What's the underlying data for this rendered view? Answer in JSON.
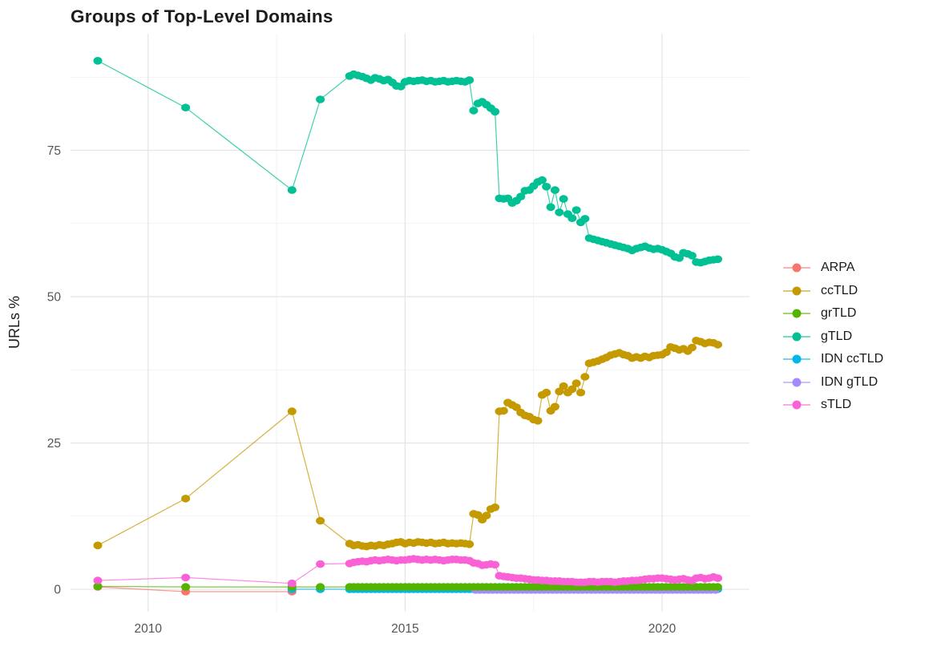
{
  "chart_data": {
    "type": "line",
    "title": "Groups of Top-Level Domains",
    "xlabel": "",
    "ylabel": "URLs %",
    "grid": true,
    "legend_position": "right",
    "x_ticks": [
      2010,
      2015,
      2020
    ],
    "x_minor_ticks": [
      2012.5,
      2017.5
    ],
    "y_ticks": [
      0,
      25,
      50,
      75
    ],
    "y_minor_ticks": [
      12.5,
      37.5,
      62.5,
      87.5
    ],
    "x_range": [
      2008.49,
      2021.7
    ],
    "y_range": [
      -3.83,
      94.93
    ],
    "colors": {
      "background": "#ffffff",
      "grid_major": "#e4e4e4",
      "grid_minor": "#efefef",
      "axis_text": "#555555",
      "title_text": "#1c1c1c"
    },
    "draw_order": [
      "ARPA",
      "IDN ccTLD",
      "IDN gTLD",
      "grTLD",
      "ccTLD",
      "gTLD",
      "sTLD"
    ],
    "series": [
      {
        "name": "ARPA",
        "color": "#F8766D",
        "points": [
          [
            2009.02,
            0.4
          ],
          [
            2010.73,
            -0.4
          ],
          [
            2012.8,
            -0.4
          ]
        ]
      },
      {
        "name": "ccTLD",
        "color": "#C49A00",
        "points": [
          [
            2009.02,
            7.5
          ],
          [
            2010.73,
            15.5
          ],
          [
            2012.8,
            30.4
          ],
          [
            2013.35,
            11.7
          ],
          [
            2013.92,
            7.8
          ]
        ],
        "monthly": {
          "start": 2014,
          "values": [
            7.5,
            7.6,
            7.4,
            7.3,
            7.5,
            7.4,
            7.6,
            7.5,
            7.7,
            7.8,
            8.0,
            8.1,
            7.8,
            8.0,
            7.9,
            8.1,
            8.0,
            7.9,
            8.0,
            7.8,
            7.9,
            8.0,
            7.8,
            7.9,
            7.8,
            7.9,
            7.8,
            7.7,
            12.9,
            12.7,
            11.9,
            12.6,
            13.7,
            14.0,
            30.4,
            30.5,
            31.9,
            31.5,
            31.1,
            30.2,
            29.7,
            29.5,
            29.0,
            28.8,
            33.2,
            33.6,
            30.5,
            31.2,
            33.8,
            34.7,
            33.6,
            34.2,
            35.2,
            33.6,
            36.3,
            38.6,
            38.8,
            39.0,
            39.3,
            39.6,
            40.0,
            40.2,
            40.4,
            40.1,
            39.9,
            39.5,
            39.7,
            39.5,
            39.8,
            39.6,
            39.9,
            40.0,
            40.1,
            40.5,
            41.4,
            41.2,
            40.9,
            41.1,
            40.7,
            41.3,
            42.5,
            42.3,
            42.0,
            42.2,
            42.1,
            41.8
          ]
        }
      },
      {
        "name": "grTLD",
        "color": "#53B400",
        "points": [
          [
            2009.02,
            0.5
          ],
          [
            2010.73,
            0.4
          ],
          [
            2012.8,
            0.4
          ],
          [
            2013.35,
            0.4
          ],
          [
            2013.92,
            0.4
          ]
        ],
        "flat": {
          "from": 2014.0,
          "to": 2021.09,
          "step": 0.08333,
          "value": 0.4
        }
      },
      {
        "name": "gTLD",
        "color": "#00C094",
        "points": [
          [
            2009.02,
            90.3
          ],
          [
            2010.73,
            82.3
          ],
          [
            2012.8,
            68.2
          ],
          [
            2013.35,
            83.7
          ],
          [
            2013.92,
            87.7
          ]
        ],
        "monthly": {
          "start": 2014,
          "values": [
            88.0,
            87.8,
            87.6,
            87.3,
            87.0,
            87.4,
            87.2,
            86.9,
            87.1,
            86.6,
            86.0,
            85.9,
            86.7,
            86.9,
            86.8,
            86.9,
            87.0,
            86.8,
            86.9,
            86.7,
            86.8,
            86.9,
            86.7,
            86.8,
            86.9,
            86.8,
            86.7,
            87.0,
            81.8,
            83.0,
            83.3,
            82.8,
            82.2,
            81.6,
            66.8,
            66.7,
            66.8,
            66.0,
            66.4,
            67.1,
            68.1,
            68.2,
            68.9,
            69.6,
            69.9,
            68.8,
            65.3,
            68.2,
            64.4,
            66.7,
            64.1,
            63.4,
            64.8,
            62.7,
            63.3,
            60.0,
            59.8,
            59.6,
            59.4,
            59.2,
            59.0,
            58.8,
            58.6,
            58.4,
            58.2,
            57.9,
            58.2,
            58.4,
            58.6,
            58.3,
            58.1,
            58.2,
            58.0,
            57.7,
            57.4,
            56.8,
            56.6,
            57.5,
            57.3,
            57.0,
            55.9,
            55.8,
            56.0,
            56.2,
            56.3,
            56.4
          ]
        }
      },
      {
        "name": "IDN ccTLD",
        "color": "#00B6EB",
        "points": [
          [
            2012.8,
            0.0
          ],
          [
            2013.35,
            0.0
          ],
          [
            2013.92,
            0.0
          ]
        ],
        "flat": {
          "from": 2014.0,
          "to": 2021.09,
          "step": 0.08333,
          "value": 0.0
        }
      },
      {
        "name": "IDN gTLD",
        "color": "#A58AFF",
        "flat": {
          "from": 2016.37,
          "to": 2021.09,
          "step": 0.08333,
          "value": -0.1
        }
      },
      {
        "name": "sTLD",
        "color": "#FB61D7",
        "points": [
          [
            2009.02,
            1.5
          ],
          [
            2010.73,
            2.0
          ],
          [
            2012.8,
            1.0
          ],
          [
            2013.35,
            4.3
          ],
          [
            2013.92,
            4.4
          ]
        ],
        "monthly": {
          "start": 2014,
          "values": [
            4.6,
            4.7,
            4.8,
            4.7,
            4.9,
            5.0,
            4.9,
            5.0,
            5.1,
            5.0,
            4.9,
            5.0,
            5.0,
            5.1,
            5.2,
            5.1,
            5.0,
            5.1,
            5.0,
            5.1,
            5.0,
            4.9,
            5.0,
            5.1,
            5.1,
            5.0,
            5.0,
            4.9,
            4.5,
            4.4,
            4.1,
            4.2,
            4.3,
            4.2,
            2.3,
            2.2,
            2.1,
            2.0,
            1.9,
            1.9,
            1.8,
            1.7,
            1.6,
            1.6,
            1.5,
            1.5,
            1.4,
            1.4,
            1.4,
            1.3,
            1.3,
            1.3,
            1.2,
            1.2,
            1.2,
            1.3,
            1.3,
            1.2,
            1.3,
            1.3,
            1.3,
            1.2,
            1.3,
            1.4,
            1.4,
            1.5,
            1.5,
            1.6,
            1.7,
            1.8,
            1.8,
            1.9,
            1.9,
            1.8,
            1.7,
            1.6,
            1.7,
            1.8,
            1.6,
            1.5,
            1.9,
            2.0,
            1.8,
            1.9,
            2.1,
            1.9
          ]
        }
      }
    ]
  }
}
